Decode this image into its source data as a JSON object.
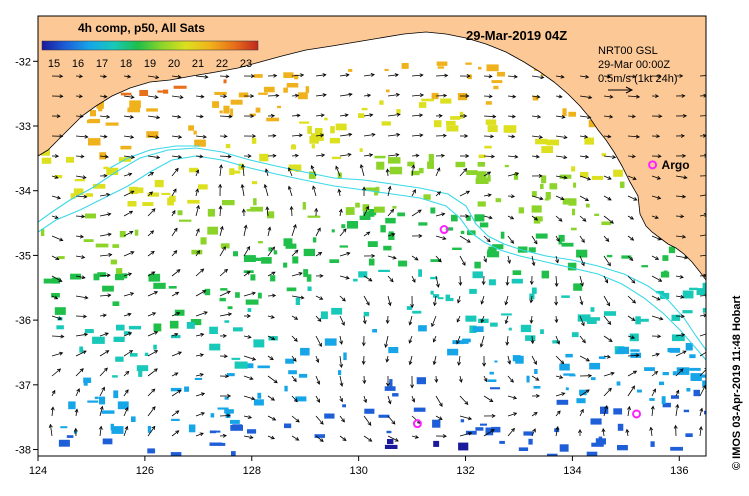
{
  "colorbar": {
    "title": "4h comp, p50, All Sats",
    "labels": [
      "15",
      "16",
      "17",
      "18",
      "19",
      "20",
      "21",
      "22",
      "23"
    ],
    "min": 14.5,
    "max": 23.5,
    "colors": [
      "#1a1a9a",
      "#1e5fd8",
      "#16a6e8",
      "#18c8b8",
      "#1fbf4a",
      "#8cd42a",
      "#dce01e",
      "#f0b21c",
      "#e8701a",
      "#c0281e"
    ]
  },
  "header": {
    "datetime": "29-Mar-2019 04Z"
  },
  "info": {
    "line1": "NRT00 GSL",
    "line2": "29-Mar 00:00Z",
    "line3": "0.5m/s (1kt 24h)"
  },
  "credit": "© IMOS 03-Apr-2019 11:48 Hobart",
  "axes": {
    "lon_min": 124,
    "lon_max": 136.5,
    "lat_min": -38.1,
    "lat_max": -31.3,
    "x_ticks": [
      "124",
      "126",
      "128",
      "130",
      "132",
      "134",
      "136"
    ],
    "y_ticks": [
      "-32",
      "-33",
      "-34",
      "-35",
      "-36",
      "-37",
      "-38"
    ]
  },
  "argo_floats": [
    {
      "label": "Argo",
      "lon": 135.5,
      "lat": -33.6
    },
    {
      "label": "",
      "lon": 131.6,
      "lat": -34.6
    },
    {
      "label": "",
      "lon": 131.1,
      "lat": -37.6
    },
    {
      "label": "",
      "lon": 135.2,
      "lat": -37.45
    }
  ],
  "colors": {
    "land": "#fcc896",
    "contour": "#3ad8e8",
    "argo": "#ff22ff",
    "arrow": "#000000"
  }
}
